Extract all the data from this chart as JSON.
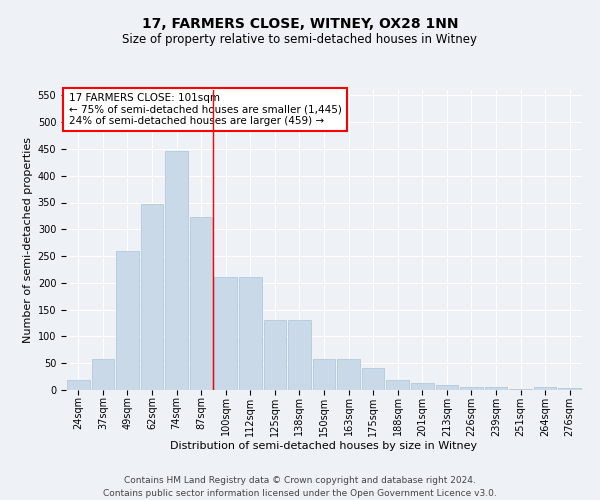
{
  "title": "17, FARMERS CLOSE, WITNEY, OX28 1NN",
  "subtitle": "Size of property relative to semi-detached houses in Witney",
  "xlabel": "Distribution of semi-detached houses by size in Witney",
  "ylabel": "Number of semi-detached properties",
  "categories": [
    "24sqm",
    "37sqm",
    "49sqm",
    "62sqm",
    "74sqm",
    "87sqm",
    "100sqm",
    "112sqm",
    "125sqm",
    "138sqm",
    "150sqm",
    "163sqm",
    "175sqm",
    "188sqm",
    "201sqm",
    "213sqm",
    "226sqm",
    "239sqm",
    "251sqm",
    "264sqm",
    "276sqm"
  ],
  "values": [
    18,
    58,
    260,
    347,
    447,
    323,
    211,
    211,
    131,
    131,
    57,
    57,
    42,
    18,
    13,
    9,
    6,
    5,
    1,
    5,
    4
  ],
  "bar_color": "#c9d9e8",
  "bar_edge_color": "#a8c4d8",
  "vline_color": "red",
  "vline_index": 6,
  "ylim": [
    0,
    560
  ],
  "yticks": [
    0,
    50,
    100,
    150,
    200,
    250,
    300,
    350,
    400,
    450,
    500,
    550
  ],
  "annotation_title": "17 FARMERS CLOSE: 101sqm",
  "annotation_line1": "← 75% of semi-detached houses are smaller (1,445)",
  "annotation_line2": "24% of semi-detached houses are larger (459) →",
  "annotation_box_color": "red",
  "footer_line1": "Contains HM Land Registry data © Crown copyright and database right 2024.",
  "footer_line2": "Contains public sector information licensed under the Open Government Licence v3.0.",
  "background_color": "#eef2f7",
  "title_fontsize": 10,
  "subtitle_fontsize": 8.5,
  "ylabel_fontsize": 8,
  "xlabel_fontsize": 8,
  "tick_fontsize": 7,
  "annotation_fontsize": 7.5,
  "footer_fontsize": 6.5
}
